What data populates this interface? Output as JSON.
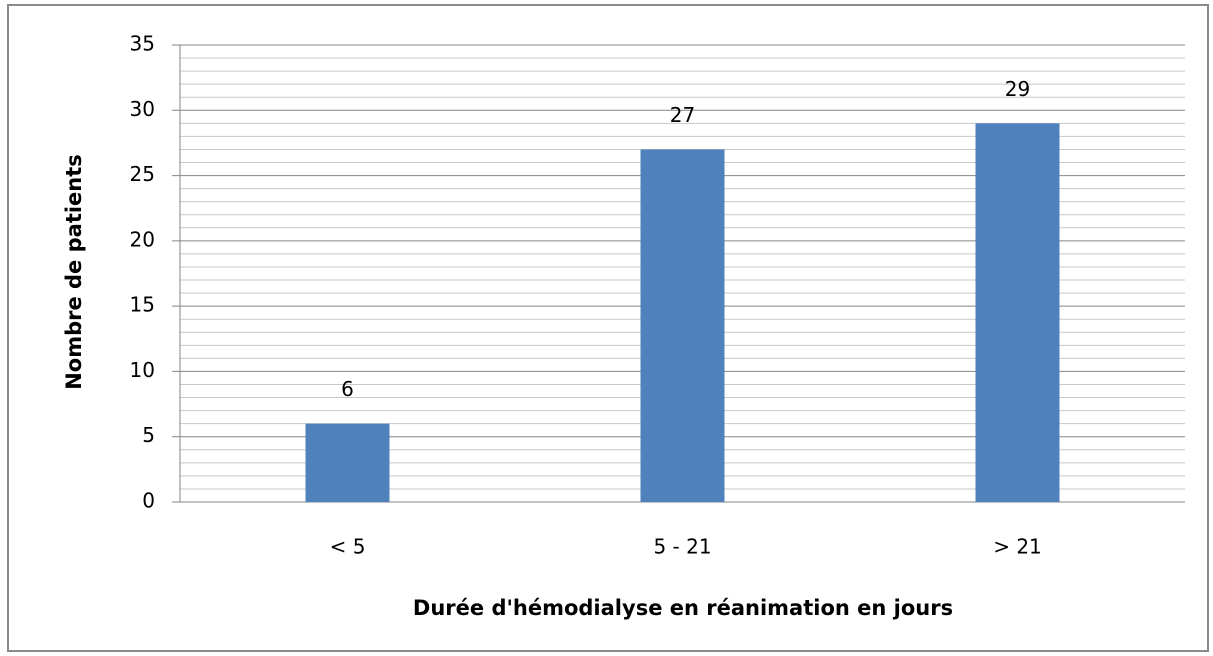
{
  "chart_data": {
    "type": "bar",
    "categories": [
      "< 5",
      "5 - 21",
      "> 21"
    ],
    "values": [
      6,
      27,
      29
    ],
    "color": "#4f81bd",
    "x_label": "Durée d'hémodialyse en réanimation en jours",
    "y_label": "Nombre de patients",
    "ylim": [
      0,
      35
    ],
    "yticks": [
      0,
      5,
      10,
      15,
      20,
      25,
      30,
      35
    ],
    "minor_yticks": [
      1,
      2,
      3,
      4,
      6,
      7,
      8,
      9,
      11,
      12,
      13,
      14,
      16,
      17,
      18,
      19,
      21,
      22,
      23,
      24,
      26,
      27,
      28,
      29,
      31,
      32,
      33,
      34
    ],
    "grid": true,
    "data_labels": true
  }
}
